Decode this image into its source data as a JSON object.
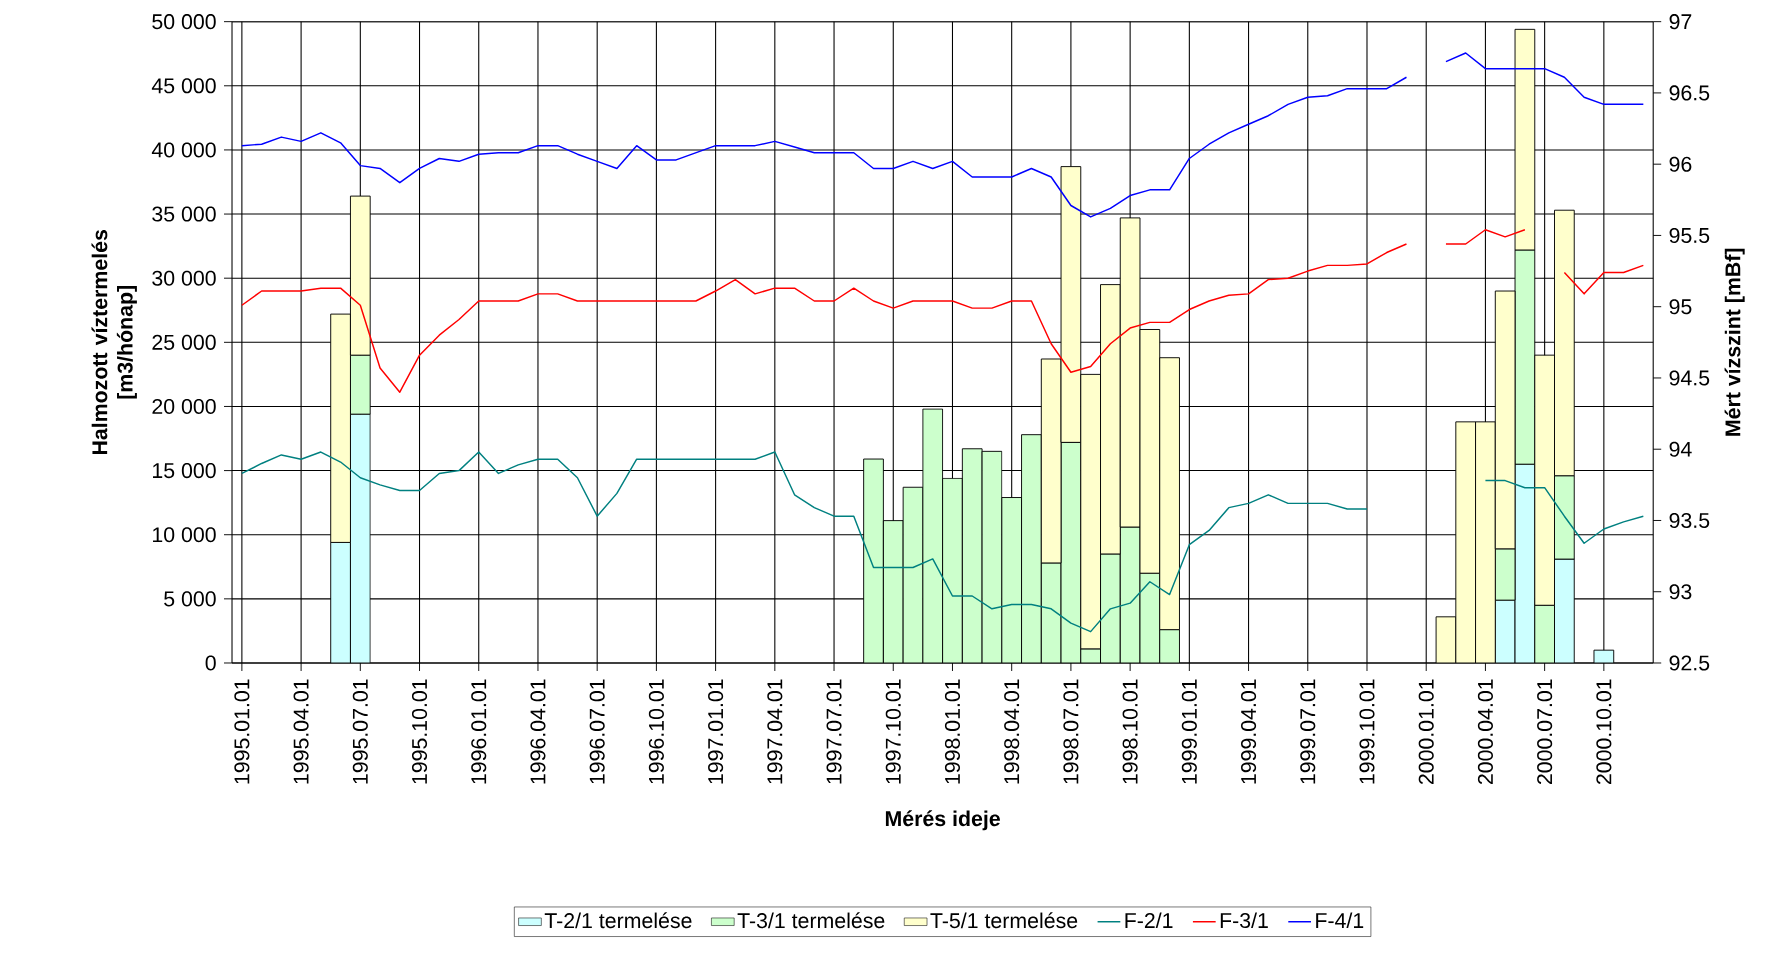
{
  "chart_data": {
    "type": "bar",
    "stacked": true,
    "xlabel": "Mérés ideje",
    "ylabel": "Halmozott víztermelés [m3/hónap]",
    "y2label": "Mért vízszint [mBf]",
    "categories": [
      "1995.01.01",
      null,
      null,
      "1995.04.01",
      null,
      null,
      "1995.07.01",
      null,
      null,
      "1995.10.01",
      null,
      null,
      "1996.01.01",
      null,
      null,
      "1996.04.01",
      null,
      null,
      "1996.07.01",
      null,
      null,
      "1996.10.01",
      null,
      null,
      "1997.01.01",
      null,
      null,
      "1997.04.01",
      null,
      null,
      "1997.07.01",
      null,
      null,
      "1997.10.01",
      null,
      null,
      "1998.01.01",
      null,
      null,
      "1998.04.01",
      null,
      null,
      "1998.07.01",
      null,
      null,
      "1998.10.01",
      null,
      null,
      "1999.01.01",
      null,
      null,
      "1999.04.01",
      null,
      null,
      "1999.07.01",
      null,
      null,
      "1999.10.01",
      null,
      null,
      "2000.01.01",
      null,
      null,
      "2000.04.01",
      null,
      null,
      "2000.07.01",
      null,
      null,
      "2000.10.01",
      null,
      null
    ],
    "ylim": [
      0,
      50000
    ],
    "yticks": [
      {
        "value": 0,
        "label": "0"
      },
      {
        "value": 5000,
        "label": "5 000"
      },
      {
        "value": 10000,
        "label": "10 000"
      },
      {
        "value": 15000,
        "label": "15 000"
      },
      {
        "value": 20000,
        "label": "20 000"
      },
      {
        "value": 25000,
        "label": "25 000"
      },
      {
        "value": 30000,
        "label": "30 000"
      },
      {
        "value": 35000,
        "label": "35 000"
      },
      {
        "value": 40000,
        "label": "40 000"
      },
      {
        "value": 45000,
        "label": "45 000"
      },
      {
        "value": 50000,
        "label": "50 000"
      }
    ],
    "y2lim": [
      92.5,
      97
    ],
    "y2ticks": [
      92.5,
      93,
      93.5,
      94,
      94.5,
      95,
      95.5,
      96,
      96.5,
      97
    ],
    "grid": true,
    "legend": "bottom",
    "series": [
      {
        "name": "T-2/1 termelése",
        "color": "#ccffff",
        "values": [
          null,
          null,
          null,
          null,
          null,
          9400,
          19400,
          null,
          null,
          null,
          null,
          null,
          null,
          null,
          null,
          null,
          null,
          null,
          null,
          null,
          null,
          null,
          null,
          null,
          null,
          null,
          null,
          null,
          null,
          null,
          null,
          null,
          null,
          null,
          null,
          null,
          null,
          null,
          null,
          null,
          null,
          null,
          null,
          null,
          null,
          null,
          null,
          null,
          null,
          null,
          null,
          null,
          null,
          null,
          null,
          null,
          null,
          null,
          null,
          null,
          null,
          null,
          null,
          null,
          4900,
          15500,
          null,
          8100,
          null,
          1000,
          null,
          null
        ]
      },
      {
        "name": "T-3/1 termelése",
        "color": "#ccffcc",
        "values": [
          null,
          null,
          null,
          null,
          null,
          null,
          4600,
          null,
          null,
          null,
          null,
          null,
          null,
          null,
          null,
          null,
          null,
          null,
          null,
          null,
          null,
          null,
          null,
          null,
          null,
          null,
          null,
          null,
          null,
          null,
          null,
          null,
          15900,
          11100,
          13700,
          19800,
          14400,
          16700,
          16500,
          12900,
          17800,
          7800,
          17200,
          1100,
          8500,
          10600,
          7000,
          2600,
          null,
          null,
          null,
          null,
          null,
          null,
          null,
          null,
          null,
          null,
          null,
          null,
          null,
          null,
          null,
          null,
          4000,
          16700,
          4500,
          6500,
          null,
          null,
          null,
          null
        ]
      },
      {
        "name": "T-5/1 termelése",
        "color": "#ffffcc",
        "values": [
          null,
          null,
          null,
          null,
          null,
          17800,
          12400,
          null,
          null,
          null,
          null,
          null,
          null,
          null,
          null,
          null,
          null,
          null,
          null,
          null,
          null,
          null,
          null,
          null,
          null,
          null,
          null,
          null,
          null,
          null,
          null,
          null,
          null,
          null,
          null,
          null,
          null,
          null,
          null,
          null,
          null,
          15900,
          21500,
          21400,
          21000,
          24100,
          19000,
          21200,
          null,
          null,
          null,
          null,
          null,
          null,
          null,
          null,
          null,
          null,
          null,
          null,
          null,
          3600,
          18800,
          18800,
          20100,
          17200,
          19500,
          20700,
          null,
          null,
          null,
          null
        ]
      },
      {
        "name": "F-2/1",
        "type": "line",
        "axis": "y2",
        "color": "#008080",
        "values": [
          93.83,
          93.9,
          93.96,
          93.93,
          93.98,
          93.91,
          93.8,
          93.75,
          93.71,
          93.71,
          93.83,
          93.85,
          93.98,
          93.83,
          93.89,
          93.93,
          93.93,
          93.8,
          93.53,
          93.69,
          93.93,
          93.93,
          93.93,
          93.93,
          93.93,
          93.93,
          93.93,
          93.98,
          93.68,
          93.59,
          93.53,
          93.53,
          93.17,
          93.17,
          93.17,
          93.23,
          92.97,
          92.97,
          92.88,
          92.91,
          92.91,
          92.88,
          92.78,
          92.72,
          92.88,
          92.92,
          93.07,
          92.98,
          93.33,
          93.43,
          93.59,
          93.62,
          93.68,
          93.62,
          93.62,
          93.62,
          93.58,
          93.58,
          null,
          null,
          null,
          null,
          null,
          93.78,
          93.78,
          93.73,
          93.73,
          93.53,
          93.34,
          93.44,
          93.49,
          93.53
        ]
      },
      {
        "name": "F-3/1",
        "type": "line",
        "axis": "y2",
        "color": "#ff0000",
        "values": [
          95.01,
          95.11,
          95.11,
          95.11,
          95.13,
          95.13,
          95.01,
          94.57,
          94.4,
          94.66,
          94.8,
          94.91,
          95.04,
          95.04,
          95.04,
          95.09,
          95.09,
          95.04,
          95.04,
          95.04,
          95.04,
          95.04,
          95.04,
          95.04,
          95.11,
          95.19,
          95.09,
          95.13,
          95.13,
          95.04,
          95.04,
          95.13,
          95.04,
          94.99,
          95.04,
          95.04,
          95.04,
          94.99,
          94.99,
          95.04,
          95.04,
          94.74,
          94.54,
          94.58,
          94.74,
          94.85,
          94.89,
          94.89,
          94.98,
          95.04,
          95.08,
          95.09,
          95.19,
          95.2,
          95.25,
          95.29,
          95.29,
          95.3,
          95.38,
          95.44,
          null,
          95.44,
          95.44,
          95.54,
          95.49,
          95.54,
          null,
          95.24,
          95.09,
          95.24,
          95.24,
          95.29
        ]
      },
      {
        "name": "F-4/1",
        "type": "line",
        "axis": "y2",
        "color": "#0000ff",
        "values": [
          96.13,
          96.14,
          96.19,
          96.16,
          96.22,
          96.15,
          95.99,
          95.97,
          95.87,
          95.97,
          96.04,
          96.02,
          96.07,
          96.08,
          96.08,
          96.13,
          96.13,
          96.07,
          96.02,
          95.97,
          96.13,
          96.03,
          96.03,
          96.08,
          96.13,
          96.13,
          96.13,
          96.16,
          96.12,
          96.08,
          96.08,
          96.08,
          95.97,
          95.97,
          96.02,
          95.97,
          96.02,
          95.91,
          95.91,
          95.91,
          95.97,
          95.91,
          95.71,
          95.63,
          95.69,
          95.78,
          95.82,
          95.82,
          96.04,
          96.14,
          96.22,
          96.28,
          96.34,
          96.42,
          96.47,
          96.48,
          96.53,
          96.53,
          96.53,
          96.61,
          null,
          96.72,
          96.78,
          96.67,
          96.67,
          96.67,
          96.67,
          96.61,
          96.47,
          96.42,
          96.42,
          96.42
        ]
      }
    ]
  }
}
